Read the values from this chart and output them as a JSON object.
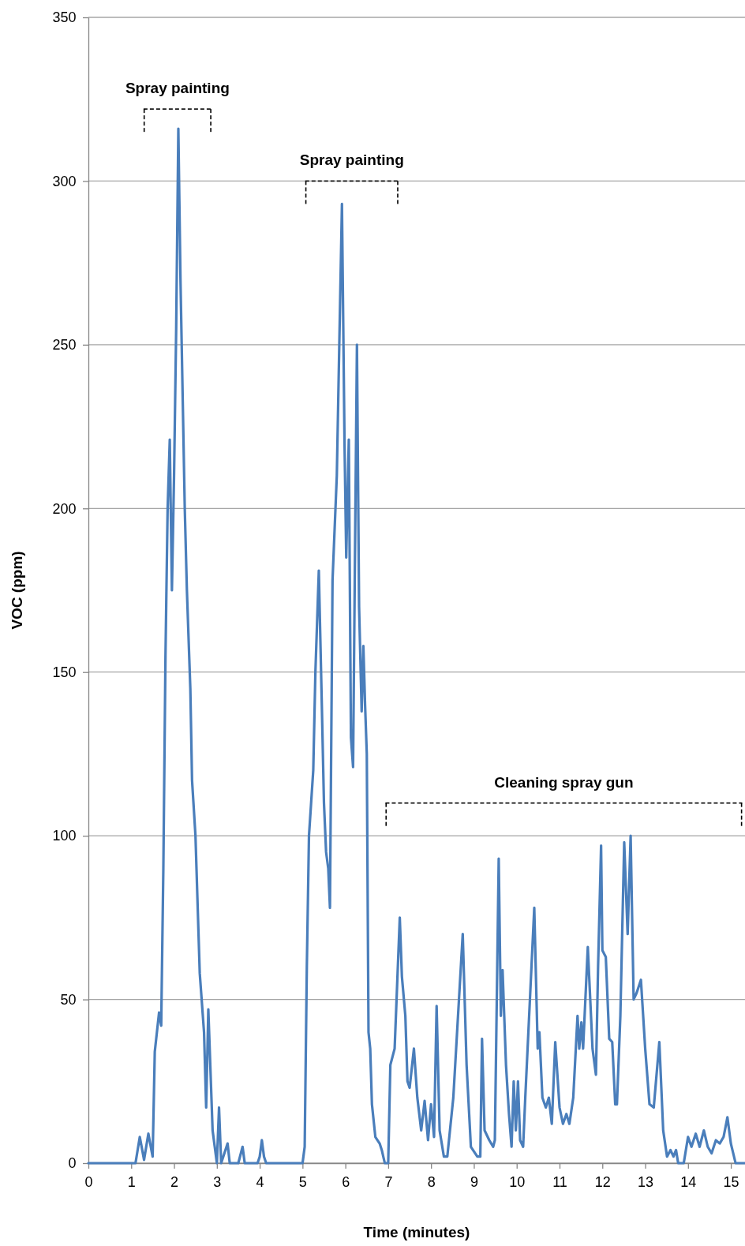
{
  "chart_data": {
    "type": "line",
    "xlabel": "Time (minutes)",
    "ylabel": "VOC (ppm)",
    "xlim": [
      0,
      15.33
    ],
    "xticks": [
      0,
      1,
      2,
      3,
      4,
      5,
      6,
      7,
      8,
      9,
      10,
      11,
      12,
      13,
      14,
      15
    ],
    "ylim": [
      0,
      350
    ],
    "yticks": [
      0,
      50,
      100,
      150,
      200,
      250,
      300,
      350
    ],
    "grid": "y",
    "line_style": "solid",
    "marker": "none",
    "annotations": [
      {
        "text": "Spray painting",
        "x": 2.08,
        "y": 322
      },
      {
        "text": "Spray painting",
        "x": 6.15,
        "y": 300
      },
      {
        "text": "Cleaning spray gun",
        "x": 11.1,
        "y": 110
      }
    ],
    "series": [
      {
        "color": "#4a7ebb",
        "x": [
          0,
          1.1,
          1.2,
          1.3,
          1.4,
          1.5,
          1.55,
          1.65,
          1.7,
          1.75,
          1.8,
          1.85,
          1.9,
          1.95,
          2.0,
          2.05,
          2.1,
          2.15,
          2.25,
          2.3,
          2.38,
          2.42,
          2.5,
          2.6,
          2.7,
          2.75,
          2.8,
          2.9,
          2.95,
          3.0,
          3.05,
          3.1,
          3.25,
          3.3,
          3.5,
          3.6,
          3.65,
          3.95,
          4.0,
          4.05,
          4.1,
          4.15,
          5.0,
          5.05,
          5.1,
          5.15,
          5.25,
          5.3,
          5.38,
          5.45,
          5.5,
          5.55,
          5.6,
          5.64,
          5.7,
          5.8,
          5.92,
          5.98,
          6.02,
          6.08,
          6.13,
          6.18,
          6.22,
          6.27,
          6.32,
          6.38,
          6.42,
          6.46,
          6.5,
          6.54,
          6.58,
          6.62,
          6.7,
          6.8,
          6.85,
          6.92,
          7.0,
          7.05,
          7.15,
          7.27,
          7.32,
          7.4,
          7.45,
          7.5,
          7.6,
          7.68,
          7.77,
          7.85,
          7.93,
          8.0,
          8.07,
          8.13,
          8.2,
          8.3,
          8.38,
          8.52,
          8.74,
          8.83,
          8.93,
          9.08,
          9.15,
          9.19,
          9.25,
          9.36,
          9.45,
          9.49,
          9.58,
          9.63,
          9.67,
          9.75,
          9.82,
          9.88,
          9.93,
          9.98,
          10.03,
          10.08,
          10.15,
          10.2,
          10.41,
          10.49,
          10.53,
          10.6,
          10.68,
          10.75,
          10.82,
          10.9,
          11.0,
          11.08,
          11.16,
          11.23,
          11.32,
          11.42,
          11.46,
          11.51,
          11.55,
          11.66,
          11.77,
          11.85,
          11.9,
          11.97,
          12.0,
          12.08,
          12.16,
          12.23,
          12.3,
          12.34,
          12.42,
          12.51,
          12.59,
          12.66,
          12.73,
          12.8,
          12.9,
          13.0,
          13.1,
          13.2,
          13.33,
          13.42,
          13.51,
          13.59,
          13.66,
          13.72,
          13.77,
          13.9,
          14.0,
          14.08,
          14.18,
          14.27,
          14.37,
          14.46,
          14.55,
          14.65,
          14.74,
          14.83,
          14.92,
          15.0,
          15.11,
          15.33
        ],
        "values": [
          0,
          0,
          8,
          1,
          9,
          2,
          34,
          46,
          42,
          90,
          155,
          200,
          221,
          175,
          210,
          255,
          316,
          270,
          200,
          175,
          145,
          117,
          100,
          58,
          40,
          17,
          47,
          10,
          5,
          0,
          17,
          0,
          6,
          0,
          0,
          5,
          0,
          0,
          2,
          7,
          2,
          0,
          0,
          5,
          60,
          100,
          120,
          150,
          181,
          140,
          110,
          95,
          90,
          78,
          178,
          210,
          293,
          220,
          185,
          221,
          130,
          121,
          180,
          250,
          170,
          138,
          158,
          140,
          125,
          40,
          35,
          18,
          8,
          6,
          4,
          0,
          0,
          30,
          35,
          75,
          57,
          45,
          25,
          23,
          35,
          20,
          10,
          19,
          7,
          18,
          8,
          48,
          10,
          2,
          2,
          20,
          70,
          30,
          5,
          2,
          2,
          38,
          10,
          7,
          5,
          7,
          93,
          45,
          59,
          30,
          15,
          5,
          25,
          10,
          25,
          7,
          5,
          20,
          78,
          35,
          40,
          20,
          17,
          20,
          12,
          37,
          17,
          12,
          15,
          12,
          20,
          45,
          35,
          43,
          35,
          66,
          35,
          27,
          60,
          97,
          65,
          63,
          38,
          37,
          18,
          18,
          45,
          98,
          70,
          100,
          50,
          52,
          56,
          35,
          18,
          17,
          37,
          10,
          2,
          4,
          2,
          4,
          0,
          0,
          8,
          5,
          9,
          5,
          10,
          5,
          3,
          7,
          6,
          8,
          14,
          6,
          0,
          0
        ]
      }
    ]
  }
}
